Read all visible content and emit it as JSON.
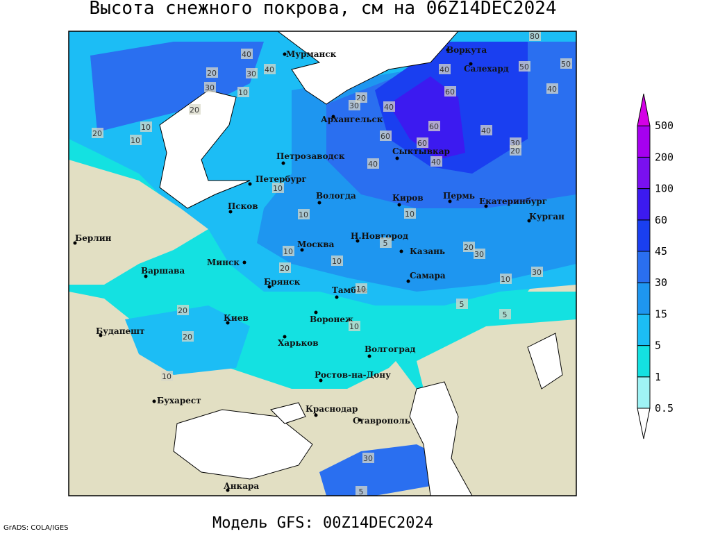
{
  "title": "Высота снежного покрова, см на 06Z14DEC2024",
  "footer": "Модель GFS: 00Z14DEC2024",
  "credit": "GrADS: COLA/IGES",
  "legend": {
    "levels": [
      "0.5",
      "1",
      "5",
      "15",
      "30",
      "45",
      "60",
      "100",
      "200",
      "500"
    ],
    "colors": [
      "#ffffff",
      "#9ff3f5",
      "#14e1e1",
      "#1cbdf5",
      "#1e96f0",
      "#2a6ff0",
      "#1a3ff0",
      "#3c1af0",
      "#7a10f0",
      "#a600f0",
      "#d400e6"
    ]
  },
  "cities": [
    "Мурманск",
    "Воркута",
    "Салехард",
    "Архангельск",
    "Петрозаводск",
    "Сыктывкар",
    "Петербург",
    "Вологда",
    "Киров",
    "Пермь",
    "Екатеринбург",
    "Курган",
    "Псков",
    "Берлин",
    "Н.Новгород",
    "Москва",
    "Казань",
    "Минск",
    "Варшава",
    "Самара",
    "Брянск",
    "Тамбов",
    "Киев",
    "Воронеж",
    "Будапешт",
    "Харьков",
    "Волгоград",
    "Ростов-на-Дону",
    "Бухарест",
    "Краснодар",
    "Ставрополь",
    "Анкара"
  ],
  "contour_labels": [
    "40",
    "30",
    "20",
    "30",
    "40",
    "20",
    "10",
    "20",
    "10",
    "10",
    "20",
    "30",
    "40",
    "60",
    "60",
    "60",
    "40",
    "50",
    "40",
    "60",
    "40",
    "40",
    "50",
    "30",
    "20",
    "10",
    "10",
    "10",
    "10",
    "20",
    "30",
    "20",
    "10",
    "20",
    "5",
    "5",
    "10",
    "5",
    "10",
    "20",
    "30",
    "10",
    "5",
    "10",
    "30",
    "40",
    "80"
  ]
}
